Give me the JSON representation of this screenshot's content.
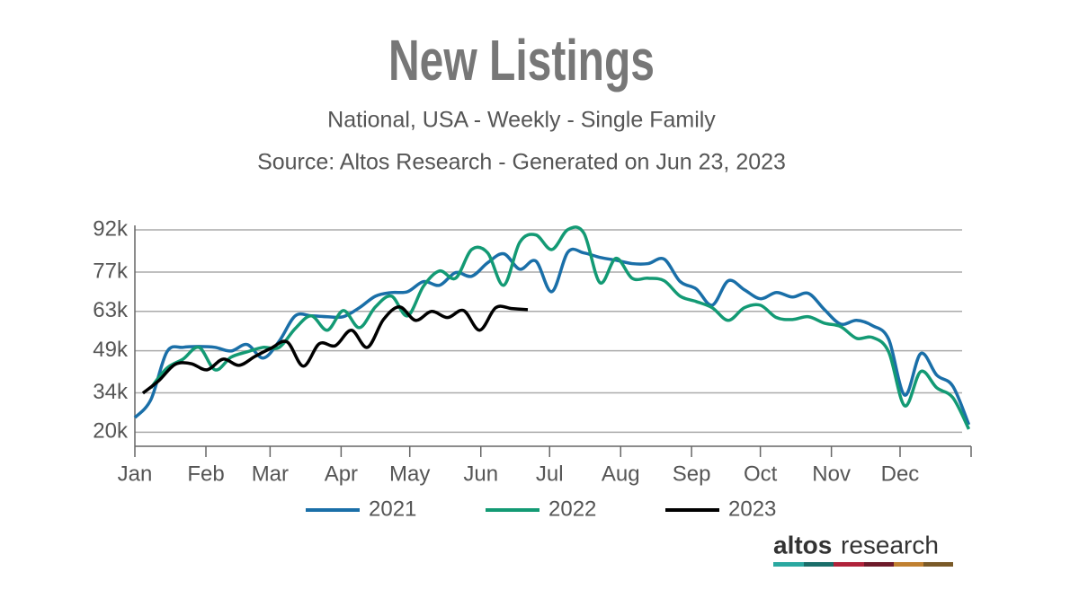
{
  "chart_data": {
    "type": "line",
    "title": "New Listings",
    "subtitle": "National, USA - Weekly - Single Family",
    "source": "Source: Altos Research - Generated on Jun 23, 2023",
    "xlim": [
      0,
      52.14
    ],
    "xticks": [
      {
        "value": 0,
        "label": "Jan"
      },
      {
        "value": 4.43,
        "label": "Feb"
      },
      {
        "value": 8.43,
        "label": "Mar"
      },
      {
        "value": 12.86,
        "label": "Apr"
      },
      {
        "value": 17.14,
        "label": "May"
      },
      {
        "value": 21.57,
        "label": "Jun"
      },
      {
        "value": 25.86,
        "label": "Jul"
      },
      {
        "value": 30.29,
        "label": "Aug"
      },
      {
        "value": 34.71,
        "label": "Sep"
      },
      {
        "value": 39,
        "label": "Oct"
      },
      {
        "value": 43.43,
        "label": "Nov"
      },
      {
        "value": 47.71,
        "label": "Dec"
      }
    ],
    "ylim": [
      15000,
      92000
    ],
    "yticks": [
      {
        "value": 20000,
        "label": "20k"
      },
      {
        "value": 34000,
        "label": "34k"
      },
      {
        "value": 49000,
        "label": "49k"
      },
      {
        "value": 63000,
        "label": "63k"
      },
      {
        "value": 77000,
        "label": "77k"
      },
      {
        "value": 92000,
        "label": "92k"
      }
    ],
    "grid": true,
    "legend": "bottom",
    "series": [
      {
        "name": "2021",
        "color": "#1a6fa8",
        "x": [
          0,
          1,
          2,
          3,
          4,
          5,
          6,
          7,
          8,
          9,
          10,
          11,
          12,
          13,
          14,
          15,
          16,
          17,
          18,
          19,
          20,
          21,
          22,
          23,
          24,
          25,
          26,
          27,
          28,
          29,
          30,
          31,
          32,
          33,
          34,
          35,
          36,
          37,
          38,
          39,
          40,
          41,
          42,
          43,
          44,
          45,
          46,
          47,
          48,
          49,
          50,
          51,
          52
        ],
        "values": [
          25200,
          31600,
          48600,
          50200,
          50500,
          50200,
          48900,
          51200,
          46400,
          52400,
          61400,
          61400,
          61100,
          61100,
          64300,
          68400,
          69700,
          70000,
          73600,
          72300,
          76800,
          75500,
          80300,
          83500,
          78000,
          80900,
          70000,
          84100,
          83800,
          82200,
          81200,
          80000,
          80000,
          81600,
          73600,
          71000,
          65200,
          73900,
          70700,
          67500,
          69700,
          68100,
          69400,
          63600,
          58500,
          59800,
          57900,
          53100,
          33200,
          48000,
          40300,
          36400,
          22700
        ]
      },
      {
        "name": "2022",
        "color": "#139a74",
        "x": [
          1,
          2,
          3,
          4,
          5,
          6,
          7,
          8,
          9,
          10,
          11,
          12,
          13,
          14,
          15,
          16,
          17,
          18,
          19,
          20,
          21,
          22,
          23,
          24,
          25,
          26,
          27,
          28,
          29,
          30,
          31,
          32,
          33,
          34,
          35,
          36,
          37,
          38,
          39,
          40,
          41,
          42,
          43,
          44,
          45,
          46,
          47,
          48,
          49,
          50,
          51,
          52
        ],
        "values": [
          35800,
          42800,
          46000,
          50200,
          42200,
          46700,
          48600,
          50200,
          50200,
          56900,
          61400,
          56300,
          63300,
          57200,
          64600,
          68400,
          61400,
          72000,
          77400,
          74800,
          85000,
          83800,
          72300,
          87600,
          90200,
          85000,
          92100,
          90800,
          73200,
          81900,
          74800,
          74800,
          73900,
          68400,
          66500,
          64300,
          59800,
          64300,
          65200,
          60800,
          60100,
          61100,
          58800,
          57600,
          53400,
          53700,
          48600,
          29400,
          41600,
          35800,
          32300,
          21100
        ]
      },
      {
        "name": "2023",
        "color": "#000000",
        "x": [
          0.5,
          1.5,
          2.5,
          3.5,
          4.5,
          5.5,
          6.5,
          7.5,
          8.5,
          9.5,
          10.5,
          11.5,
          12.5,
          13.5,
          14.5,
          15.5,
          16.5,
          17.5,
          18.5,
          19.5,
          20.5,
          21.5,
          22.5,
          23.5,
          24.5
        ],
        "values": [
          33900,
          38400,
          44100,
          44400,
          42200,
          46000,
          43800,
          47000,
          49900,
          52100,
          43500,
          51500,
          50800,
          56300,
          50200,
          60100,
          64600,
          59800,
          63000,
          60800,
          63300,
          56300,
          64300,
          64000,
          63600
        ]
      }
    ]
  },
  "logo": {
    "brand": "altos",
    "word": "research"
  }
}
